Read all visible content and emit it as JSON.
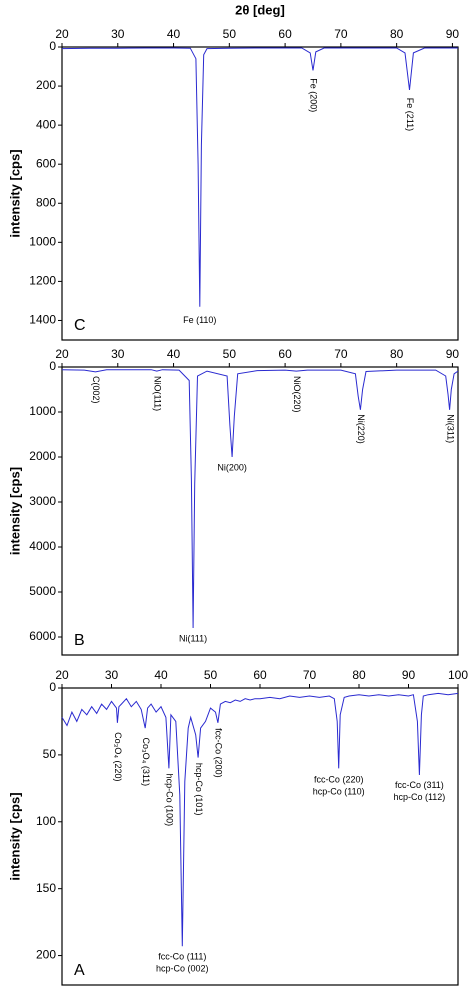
{
  "chart_data": [
    {
      "type": "line",
      "label": "C",
      "x_label": "2θ [deg]",
      "y_label": "intensity [cps]",
      "color": "#2a2ad0",
      "xlim": [
        20,
        91
      ],
      "xticks": [
        20,
        30,
        40,
        50,
        60,
        70,
        80,
        90
      ],
      "ylim": [
        0,
        1500
      ],
      "yticks": [
        0,
        200,
        400,
        600,
        800,
        1000,
        1200,
        1400
      ],
      "x": [
        20,
        25,
        30,
        35,
        40,
        43,
        44,
        44.4,
        44.7,
        45,
        45.4,
        46,
        50,
        55,
        60,
        63,
        64.5,
        65,
        65.5,
        67,
        70,
        75,
        80,
        81.5,
        82.3,
        83,
        85,
        90,
        91
      ],
      "values": [
        8,
        6,
        6,
        5,
        5,
        6,
        60,
        600,
        1330,
        500,
        40,
        8,
        6,
        5,
        5,
        5,
        30,
        120,
        25,
        5,
        5,
        5,
        5,
        30,
        220,
        30,
        5,
        5,
        5
      ],
      "annotations": [
        {
          "text": "Fe (110)",
          "x": 44.7,
          "y": 1400,
          "vertical": false
        },
        {
          "text": "Fe (200)",
          "x": 65,
          "y": 160,
          "vertical": true
        },
        {
          "text": "Fe (211)",
          "x": 82.3,
          "y": 260,
          "vertical": true
        }
      ]
    },
    {
      "type": "line",
      "label": "B",
      "y_label": "intensity [cps]",
      "color": "#2a2ad0",
      "xlim": [
        20,
        91
      ],
      "xticks": [
        20,
        30,
        40,
        50,
        60,
        70,
        80,
        90
      ],
      "ylim": [
        0,
        6400
      ],
      "yticks": [
        0,
        1000,
        2000,
        3000,
        4000,
        5000,
        6000
      ],
      "x": [
        20,
        24,
        26,
        28,
        32,
        36,
        37,
        38,
        41,
        42.8,
        43.2,
        43.5,
        43.8,
        44.3,
        46,
        49.6,
        50.1,
        50.5,
        50.9,
        51.5,
        55,
        60,
        62,
        64,
        70,
        72.6,
        73.1,
        73.5,
        73.9,
        74.5,
        80,
        87,
        88.8,
        89.2,
        89.5,
        89.8,
        90.3,
        91
      ],
      "values": [
        60,
        70,
        110,
        60,
        60,
        60,
        90,
        60,
        70,
        300,
        2500,
        5800,
        2600,
        200,
        90,
        200,
        1300,
        2000,
        1100,
        150,
        80,
        70,
        90,
        70,
        70,
        150,
        650,
        950,
        500,
        100,
        70,
        70,
        200,
        600,
        950,
        500,
        150,
        90
      ],
      "annotations": [
        {
          "text": "Ni(111)",
          "x": 43.5,
          "y": 6050,
          "vertical": false
        },
        {
          "text": "Ni(200)",
          "x": 50.5,
          "y": 2250,
          "vertical": false
        },
        {
          "text": "C(002)",
          "x": 26,
          "y": 200,
          "vertical": true
        },
        {
          "text": "NiO(111)",
          "x": 37,
          "y": 200,
          "vertical": true
        },
        {
          "text": "NiO(220)",
          "x": 62,
          "y": 200,
          "vertical": true
        },
        {
          "text": "Ni(220)",
          "x": 73.5,
          "y": 1050,
          "vertical": true
        },
        {
          "text": "Ni(311)",
          "x": 89.5,
          "y": 1050,
          "vertical": true
        }
      ]
    },
    {
      "type": "line",
      "label": "A",
      "y_label": "intensity [cps]",
      "color": "#2a2ad0",
      "xlim": [
        20,
        100
      ],
      "xticks": [
        20,
        30,
        40,
        50,
        60,
        70,
        80,
        90,
        100
      ],
      "ylim": [
        0,
        222
      ],
      "yticks": [
        0,
        50,
        100,
        150,
        200
      ],
      "x": [
        20,
        21,
        22,
        23,
        24,
        25,
        26,
        27,
        28,
        29,
        30,
        31,
        31.2,
        31.5,
        32,
        33,
        34,
        35,
        36,
        36.8,
        37.3,
        38,
        39,
        40,
        41,
        41.6,
        42,
        43,
        43.8,
        44.3,
        44.8,
        45.5,
        46,
        47,
        47.5,
        48,
        49,
        50,
        51,
        51.5,
        52,
        53,
        54,
        55,
        56,
        57,
        58,
        59,
        60,
        62,
        64,
        66,
        68,
        70,
        72,
        74,
        75,
        75.6,
        75.9,
        76.2,
        77,
        78,
        80,
        82,
        84,
        86,
        88,
        90,
        91,
        91.8,
        92.2,
        92.6,
        93,
        94,
        96,
        98,
        100
      ],
      "values": [
        22,
        28,
        18,
        25,
        16,
        20,
        14,
        19,
        12,
        16,
        10,
        15,
        26,
        14,
        12,
        8,
        14,
        10,
        16,
        30,
        15,
        12,
        18,
        14,
        22,
        60,
        20,
        25,
        80,
        193,
        70,
        30,
        22,
        35,
        52,
        30,
        25,
        15,
        18,
        26,
        12,
        10,
        11,
        9,
        10,
        8,
        9,
        8,
        8,
        7,
        8,
        6,
        7,
        6,
        7,
        6,
        8,
        25,
        60,
        20,
        7,
        6,
        5,
        6,
        5,
        6,
        5,
        6,
        5,
        25,
        65,
        20,
        6,
        5,
        4,
        5,
        4
      ],
      "annotations": [
        {
          "text": "fcc-Co (111)",
          "x": 44.3,
          "y": 201,
          "vertical": false
        },
        {
          "text": "hcp-Co (002)",
          "x": 44.3,
          "y": 210,
          "vertical": false
        },
        {
          "text": "fcc-Co (220)",
          "x": 75.9,
          "y": 69,
          "vertical": false
        },
        {
          "text": "hcp-Co (110)",
          "x": 75.9,
          "y": 78,
          "vertical": false
        },
        {
          "text": "fcc-Co (311)",
          "x": 92.2,
          "y": 73,
          "vertical": false
        },
        {
          "text": "hcp-Co (112)",
          "x": 92.2,
          "y": 82,
          "vertical": false
        },
        {
          "text": "Co₃O₄ (220)",
          "x": 31.2,
          "y": 33,
          "vertical": true
        },
        {
          "text": "Co₃O₄ (311)",
          "x": 36.8,
          "y": 37,
          "vertical": true
        },
        {
          "text": "hcp-Co (100)",
          "x": 41.6,
          "y": 64,
          "vertical": true
        },
        {
          "text": "hcp-Co (101)",
          "x": 47.5,
          "y": 56,
          "vertical": true
        },
        {
          "text": "fcc-Co (200)",
          "x": 51.5,
          "y": 30,
          "vertical": true
        }
      ]
    }
  ]
}
